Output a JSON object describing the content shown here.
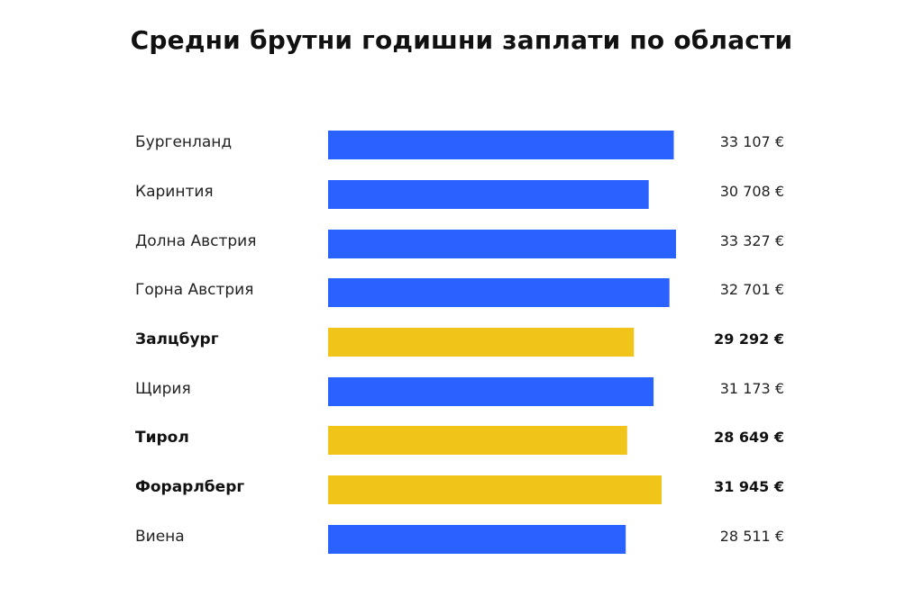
{
  "chart_data": {
    "type": "bar",
    "orientation": "horizontal",
    "title": "Средни брутни годишни заплати по области",
    "xlabel": "",
    "ylabel": "",
    "grid": false,
    "legend": "none",
    "xlim": [
      0,
      33327
    ],
    "colors": {
      "default": "#2962ff",
      "highlight": "#f0c419"
    },
    "categories": [
      "Бургенланд",
      "Каринтия",
      "Долна Австрия",
      "Горна Австрия",
      "Залцбург",
      "Щирия",
      "Тирол",
      "Форарлберг",
      "Виена"
    ],
    "values": [
      33107,
      30708,
      33327,
      32701,
      29292,
      31173,
      28649,
      31945,
      28511
    ],
    "value_labels": [
      "33 107 €",
      "30 708 €",
      "33 327 €",
      "32 701 €",
      "29 292 €",
      "31 173 €",
      "28 649 €",
      "31 945 €",
      "28 511 €"
    ],
    "highlighted": [
      false,
      false,
      false,
      false,
      true,
      false,
      true,
      true,
      false
    ]
  }
}
